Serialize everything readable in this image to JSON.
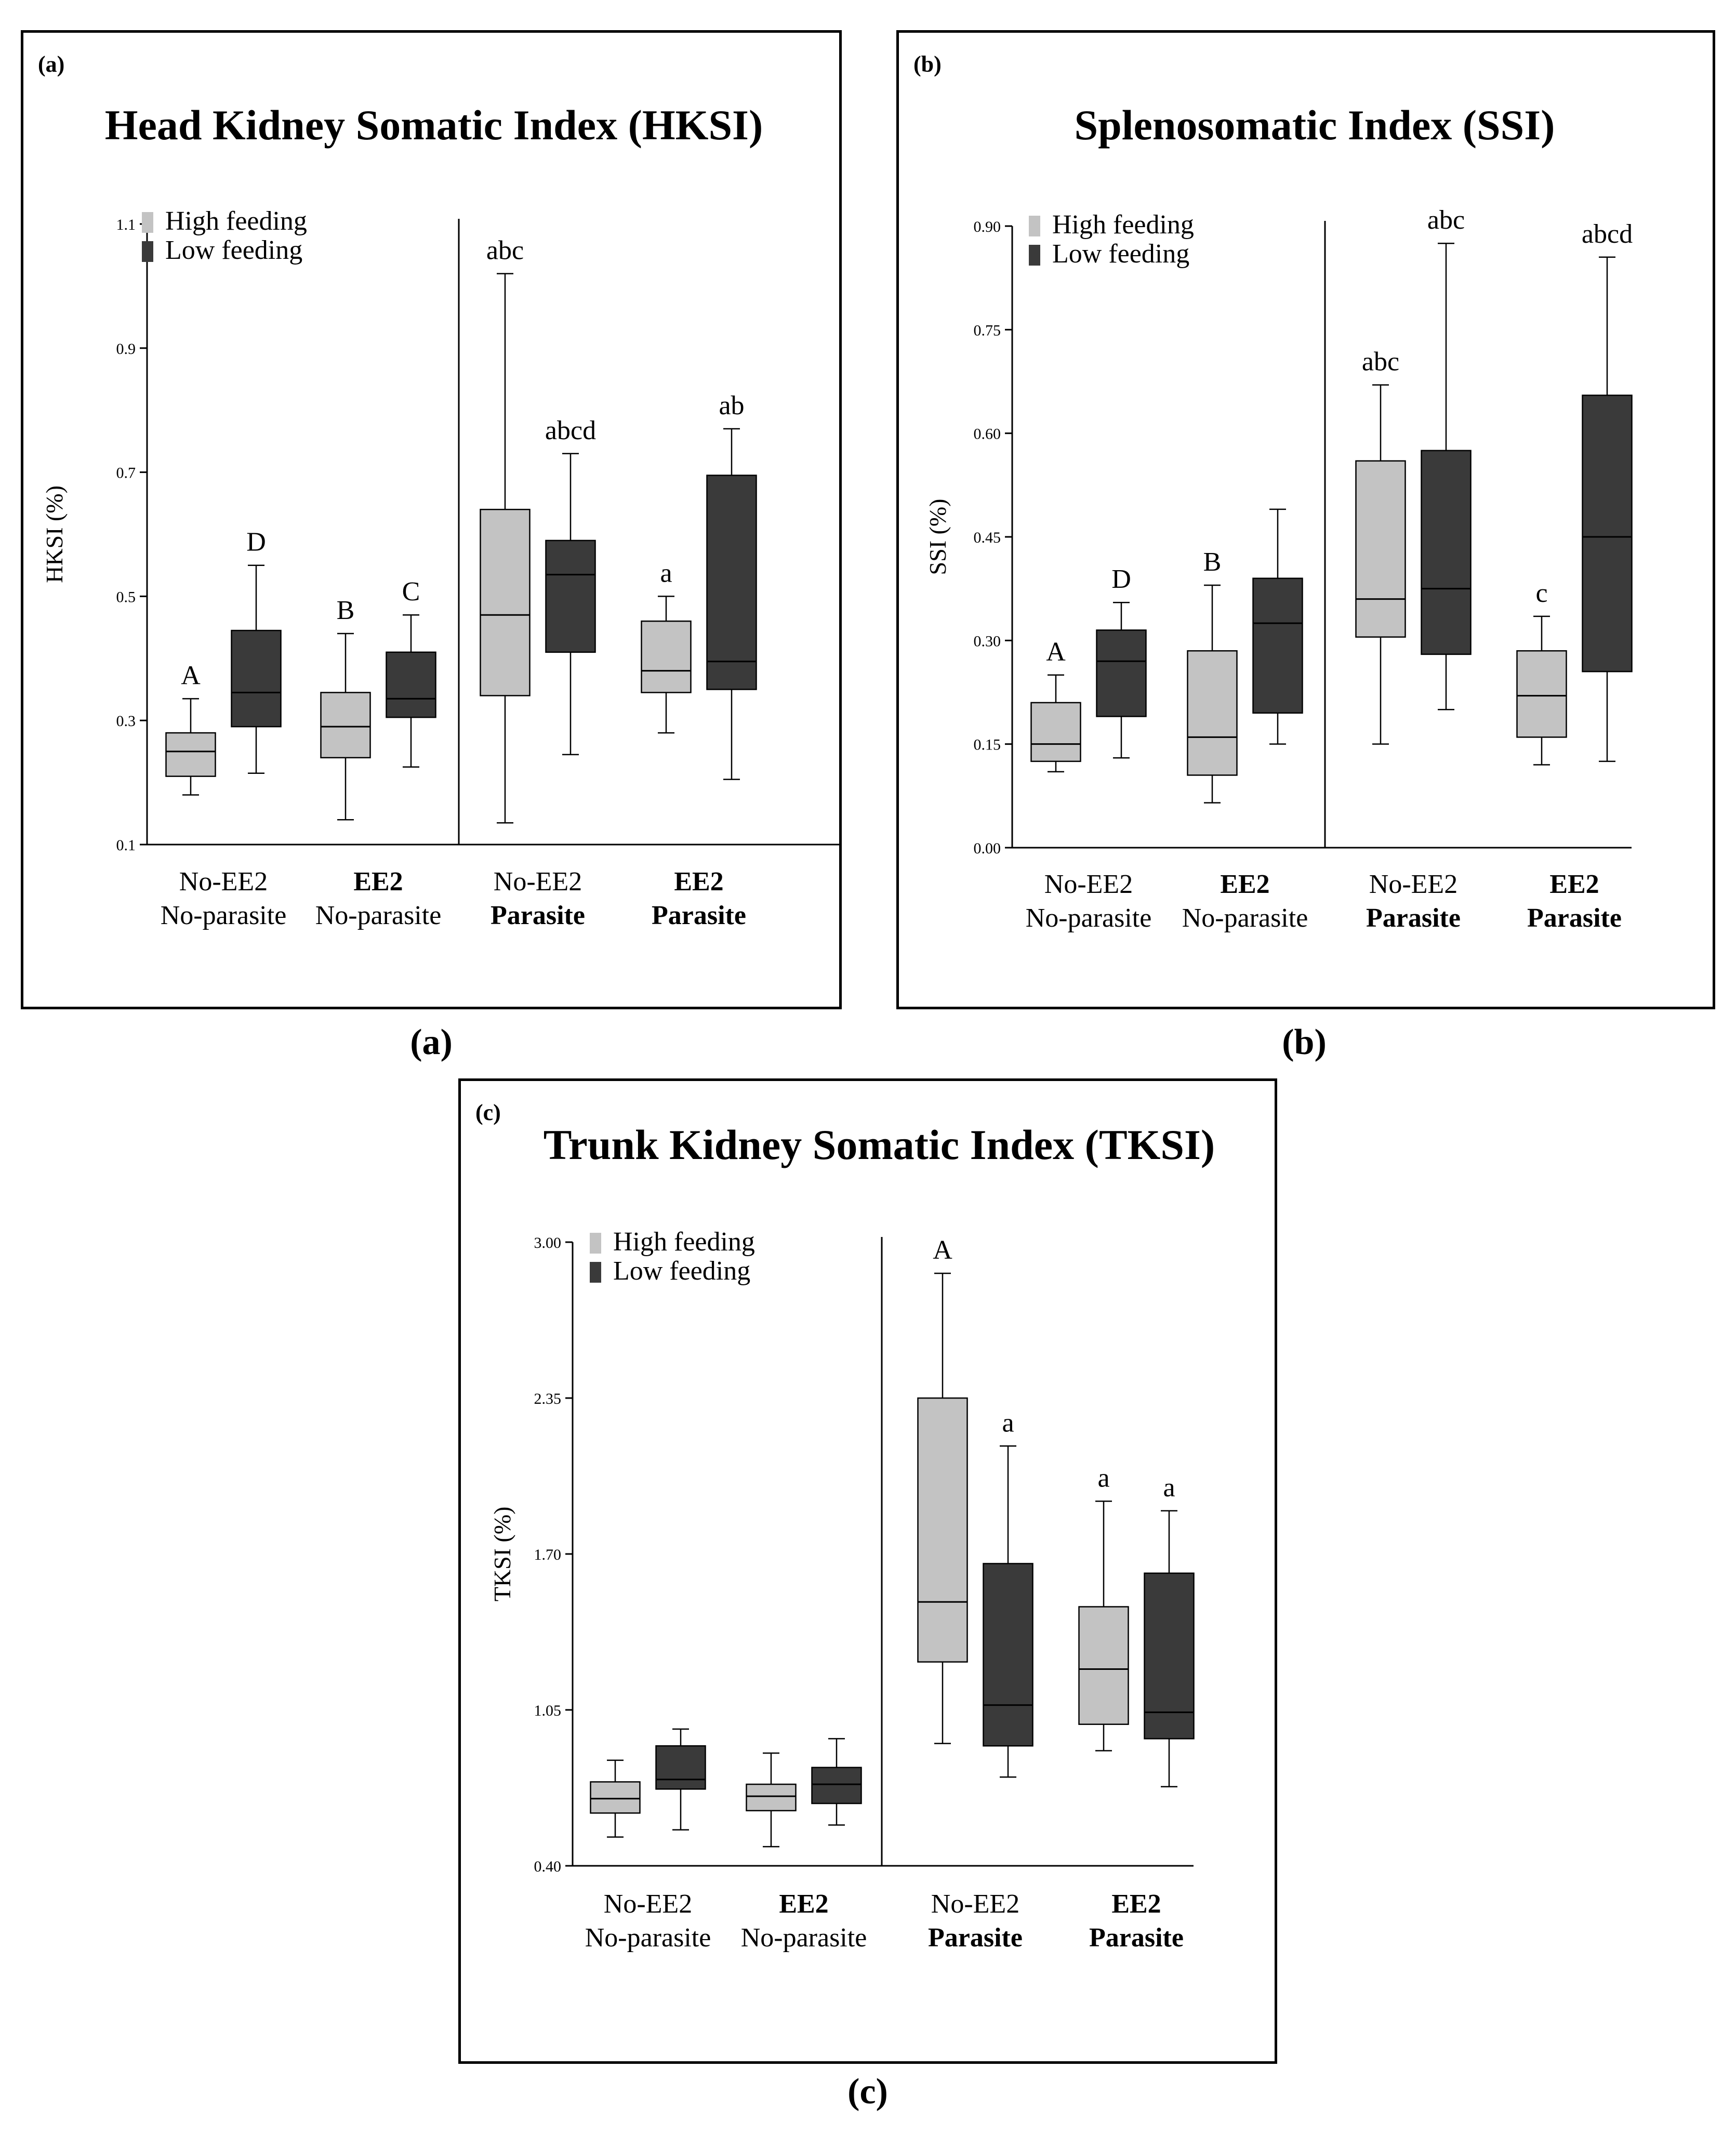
{
  "captions": [
    "(a)",
    "(b)",
    "(c)"
  ],
  "chart_data": [
    {
      "type": "boxplot",
      "panel_tag": "(a)",
      "title": "Head Kidney Somatic Index (HKSI)",
      "ylabel": "HKSI (%)",
      "ylim": [
        0.1,
        1.1
      ],
      "yticks": [
        0.1,
        0.3,
        0.5,
        0.7,
        0.9,
        1.1
      ],
      "ytick_labels": [
        "0.1",
        "0.3",
        "0.5",
        "0.7",
        "0.9",
        "1.1"
      ],
      "legend": [
        {
          "name": "High feeding",
          "color": "#c3c3c3"
        },
        {
          "name": "Low feeding",
          "color": "#3a3a3a"
        }
      ],
      "groups": [
        {
          "line1": "No-EE2",
          "line2": "No-parasite",
          "bold1": false,
          "bold2": false
        },
        {
          "line1": "EE2",
          "line2": "No-parasite",
          "bold1": true,
          "bold2": false
        },
        {
          "line1": "No-EE2",
          "line2": "Parasite",
          "bold1": false,
          "bold2": true
        },
        {
          "line1": "EE2",
          "line2": "Parasite",
          "bold1": true,
          "bold2": true
        }
      ],
      "boxes": [
        {
          "group": 0,
          "series": "High feeding",
          "min": 0.18,
          "q1": 0.21,
          "median": 0.25,
          "q3": 0.28,
          "max": 0.335,
          "letter": "A"
        },
        {
          "group": 0,
          "series": "Low feeding",
          "min": 0.215,
          "q1": 0.29,
          "median": 0.345,
          "q3": 0.445,
          "max": 0.55,
          "letter": "D"
        },
        {
          "group": 1,
          "series": "High feeding",
          "min": 0.14,
          "q1": 0.24,
          "median": 0.29,
          "q3": 0.345,
          "max": 0.44,
          "letter": "B"
        },
        {
          "group": 1,
          "series": "Low feeding",
          "min": 0.225,
          "q1": 0.305,
          "median": 0.335,
          "q3": 0.41,
          "max": 0.47,
          "letter": "C"
        },
        {
          "group": 2,
          "series": "High feeding",
          "min": 0.135,
          "q1": 0.34,
          "median": 0.47,
          "q3": 0.64,
          "max": 1.02,
          "letter": "abc"
        },
        {
          "group": 2,
          "series": "Low feeding",
          "min": 0.245,
          "q1": 0.41,
          "median": 0.535,
          "q3": 0.59,
          "max": 0.73,
          "letter": "abcd"
        },
        {
          "group": 3,
          "series": "High feeding",
          "min": 0.28,
          "q1": 0.345,
          "median": 0.38,
          "q3": 0.46,
          "max": 0.5,
          "letter": "a"
        },
        {
          "group": 3,
          "series": "Low feeding",
          "min": 0.205,
          "q1": 0.35,
          "median": 0.395,
          "q3": 0.695,
          "max": 0.77,
          "letter": "ab"
        }
      ]
    },
    {
      "type": "boxplot",
      "panel_tag": "(b)",
      "title": "Splenosomatic Index (SSI)",
      "ylabel": "SSI (%)",
      "ylim": [
        0.0,
        0.9
      ],
      "yticks": [
        0.0,
        0.15,
        0.3,
        0.45,
        0.6,
        0.75,
        0.9
      ],
      "ytick_labels": [
        "0.00",
        "0.15",
        "0.30",
        "0.45",
        "0.60",
        "0.75",
        "0.90"
      ],
      "legend": [
        {
          "name": "High feeding",
          "color": "#c3c3c3"
        },
        {
          "name": "Low feeding",
          "color": "#3a3a3a"
        }
      ],
      "groups": [
        {
          "line1": "No-EE2",
          "line2": "No-parasite",
          "bold1": false,
          "bold2": false
        },
        {
          "line1": "EE2",
          "line2": "No-parasite",
          "bold1": true,
          "bold2": false
        },
        {
          "line1": "No-EE2",
          "line2": "Parasite",
          "bold1": false,
          "bold2": true
        },
        {
          "line1": "EE2",
          "line2": "Parasite",
          "bold1": true,
          "bold2": true
        }
      ],
      "boxes": [
        {
          "group": 0,
          "series": "High feeding",
          "min": 0.11,
          "q1": 0.125,
          "median": 0.15,
          "q3": 0.21,
          "max": 0.25,
          "letter": "A"
        },
        {
          "group": 0,
          "series": "Low feeding",
          "min": 0.13,
          "q1": 0.19,
          "median": 0.27,
          "q3": 0.315,
          "max": 0.355,
          "letter": "D"
        },
        {
          "group": 1,
          "series": "High feeding",
          "min": 0.065,
          "q1": 0.105,
          "median": 0.16,
          "q3": 0.285,
          "max": 0.38,
          "letter": "B"
        },
        {
          "group": 1,
          "series": "Low feeding",
          "min": 0.15,
          "q1": 0.195,
          "median": 0.325,
          "q3": 0.39,
          "max": 0.49,
          "letter": ""
        },
        {
          "group": 2,
          "series": "High feeding",
          "min": 0.15,
          "q1": 0.305,
          "median": 0.36,
          "q3": 0.56,
          "max": 0.67,
          "letter": "abc"
        },
        {
          "group": 2,
          "series": "Low feeding",
          "min": 0.2,
          "q1": 0.28,
          "median": 0.375,
          "q3": 0.575,
          "max": 0.875,
          "letter": "abc"
        },
        {
          "group": 3,
          "series": "High feeding",
          "min": 0.12,
          "q1": 0.16,
          "median": 0.22,
          "q3": 0.285,
          "max": 0.335,
          "letter": "c"
        },
        {
          "group": 3,
          "series": "Low feeding",
          "min": 0.125,
          "q1": 0.255,
          "median": 0.45,
          "q3": 0.655,
          "max": 0.855,
          "letter": "abcd"
        }
      ]
    },
    {
      "type": "boxplot",
      "panel_tag": "(c)",
      "title": "Trunk Kidney Somatic Index (TKSI)",
      "ylabel": "TKSI (%)",
      "ylim": [
        0.4,
        3.0
      ],
      "yticks": [
        0.4,
        1.05,
        1.7,
        2.35,
        3.0
      ],
      "ytick_labels": [
        "0.40",
        "1.05",
        "1.70",
        "2.35",
        "3.00"
      ],
      "legend": [
        {
          "name": "High feeding",
          "color": "#c3c3c3"
        },
        {
          "name": "Low feeding",
          "color": "#3a3a3a"
        }
      ],
      "groups": [
        {
          "line1": "No-EE2",
          "line2": "No-parasite",
          "bold1": false,
          "bold2": false
        },
        {
          "line1": "EE2",
          "line2": "No-parasite",
          "bold1": true,
          "bold2": false
        },
        {
          "line1": "No-EE2",
          "line2": "Parasite",
          "bold1": false,
          "bold2": true
        },
        {
          "line1": "EE2",
          "line2": "Parasite",
          "bold1": true,
          "bold2": true
        }
      ],
      "boxes": [
        {
          "group": 0,
          "series": "High feeding",
          "min": 0.52,
          "q1": 0.62,
          "median": 0.68,
          "q3": 0.75,
          "max": 0.84,
          "letter": ""
        },
        {
          "group": 0,
          "series": "Low feeding",
          "min": 0.55,
          "q1": 0.72,
          "median": 0.76,
          "q3": 0.9,
          "max": 0.97,
          "letter": ""
        },
        {
          "group": 1,
          "series": "High feeding",
          "min": 0.48,
          "q1": 0.63,
          "median": 0.69,
          "q3": 0.74,
          "max": 0.87,
          "letter": ""
        },
        {
          "group": 1,
          "series": "Low feeding",
          "min": 0.57,
          "q1": 0.66,
          "median": 0.74,
          "q3": 0.81,
          "max": 0.93,
          "letter": ""
        },
        {
          "group": 2,
          "series": "High feeding",
          "min": 0.91,
          "q1": 1.25,
          "median": 1.5,
          "q3": 2.35,
          "max": 2.87,
          "letter": "A"
        },
        {
          "group": 2,
          "series": "Low feeding",
          "min": 0.77,
          "q1": 0.9,
          "median": 1.07,
          "q3": 1.66,
          "max": 2.15,
          "letter": "a"
        },
        {
          "group": 3,
          "series": "High feeding",
          "min": 0.88,
          "q1": 0.99,
          "median": 1.22,
          "q3": 1.48,
          "max": 1.92,
          "letter": "a"
        },
        {
          "group": 3,
          "series": "Low feeding",
          "min": 0.73,
          "q1": 0.93,
          "median": 1.04,
          "q3": 1.62,
          "max": 1.88,
          "letter": "a"
        }
      ]
    }
  ]
}
